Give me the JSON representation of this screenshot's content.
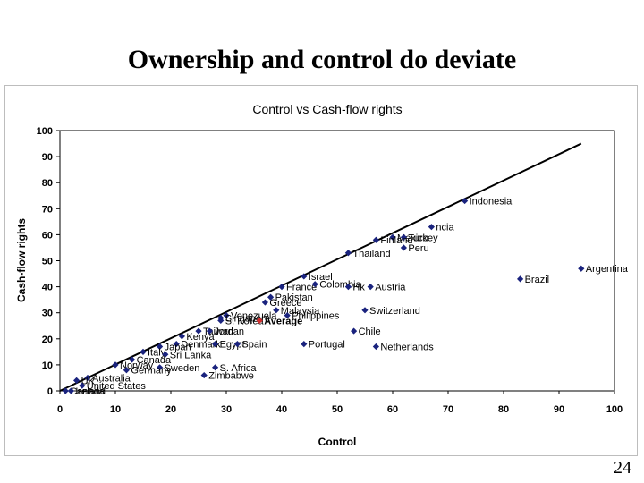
{
  "slide": {
    "title": "Ownership and control do deviate",
    "page_number": "24"
  },
  "chart_data": {
    "type": "scatter",
    "title": "Control vs Cash-flow rights",
    "xlabel": "Control",
    "ylabel": "Cash-flow rights",
    "xlim": [
      0,
      100
    ],
    "ylim": [
      0,
      100
    ],
    "xticks": [
      "0",
      "10",
      "20",
      "30",
      "40",
      "50",
      "60",
      "70",
      "80",
      "90",
      "100"
    ],
    "yticks": [
      "0",
      "10",
      "20",
      "30",
      "40",
      "50",
      "60",
      "70",
      "80",
      "90",
      "100"
    ],
    "grid": false,
    "legend": "none",
    "marker_color": "#1a237e",
    "highlight_color": "#d32f2f",
    "trend_line": {
      "x": [
        0,
        94
      ],
      "y": [
        0,
        95
      ]
    },
    "points": [
      {
        "label": "Indonesia",
        "x": 73,
        "y": 73
      },
      {
        "label": "ncia",
        "x": 67,
        "y": 63
      },
      {
        "label": "Mexico",
        "x": 60,
        "y": 59
      },
      {
        "label": "Turkey",
        "x": 62,
        "y": 59
      },
      {
        "label": "Finland",
        "x": 57,
        "y": 58
      },
      {
        "label": "Peru",
        "x": 62,
        "y": 55
      },
      {
        "label": "Thailand",
        "x": 52,
        "y": 53
      },
      {
        "label": "Argentina",
        "x": 94,
        "y": 47
      },
      {
        "label": "Israel",
        "x": 44,
        "y": 44
      },
      {
        "label": "Brazil",
        "x": 83,
        "y": 43
      },
      {
        "label": "France",
        "x": 40,
        "y": 40
      },
      {
        "label": "Colombia",
        "x": 46,
        "y": 41
      },
      {
        "label": "Austria",
        "x": 56,
        "y": 40
      },
      {
        "label": "Hk",
        "x": 52,
        "y": 40
      },
      {
        "label": "Pakistan",
        "x": 38,
        "y": 36
      },
      {
        "label": "Greece",
        "x": 37,
        "y": 34
      },
      {
        "label": "Malaysia",
        "x": 39,
        "y": 31
      },
      {
        "label": "Venezuela",
        "x": 30,
        "y": 29
      },
      {
        "label": "Philippines",
        "x": 41,
        "y": 29
      },
      {
        "label": "Switzerland",
        "x": 55,
        "y": 31
      },
      {
        "label": "Singapore",
        "x": 29,
        "y": 28
      },
      {
        "label": "S. Korea",
        "x": 29,
        "y": 27
      },
      {
        "label": "Average",
        "x": 36,
        "y": 27,
        "highlight": true
      },
      {
        "label": "Taiwan",
        "x": 25,
        "y": 23
      },
      {
        "label": "Jordan",
        "x": 27,
        "y": 23
      },
      {
        "label": "Chile",
        "x": 53,
        "y": 23
      },
      {
        "label": "Kenya",
        "x": 22,
        "y": 21
      },
      {
        "label": "Denmark",
        "x": 21,
        "y": 18
      },
      {
        "label": "Egypt",
        "x": 28,
        "y": 18
      },
      {
        "label": "Spain",
        "x": 32,
        "y": 18
      },
      {
        "label": "Portugal",
        "x": 44,
        "y": 18
      },
      {
        "label": "Netherlands",
        "x": 57,
        "y": 17
      },
      {
        "label": "Japan",
        "x": 18,
        "y": 17
      },
      {
        "label": "Italy",
        "x": 15,
        "y": 15
      },
      {
        "label": "Sri Lanka",
        "x": 19,
        "y": 14
      },
      {
        "label": "Canada",
        "x": 13,
        "y": 12
      },
      {
        "label": "Norway",
        "x": 10,
        "y": 10
      },
      {
        "label": "Sweden",
        "x": 18,
        "y": 9
      },
      {
        "label": "S. Africa",
        "x": 28,
        "y": 9
      },
      {
        "label": "Germany",
        "x": 12,
        "y": 8
      },
      {
        "label": "Zimbabwe",
        "x": 26,
        "y": 6
      },
      {
        "label": "Australia",
        "x": 5,
        "y": 5
      },
      {
        "label": "UK",
        "x": 3,
        "y": 4
      },
      {
        "label": "United States",
        "x": 4,
        "y": 2
      },
      {
        "label": "Canada",
        "x": 1,
        "y": 0
      },
      {
        "label": "Ireland",
        "x": 2,
        "y": 0
      }
    ]
  }
}
